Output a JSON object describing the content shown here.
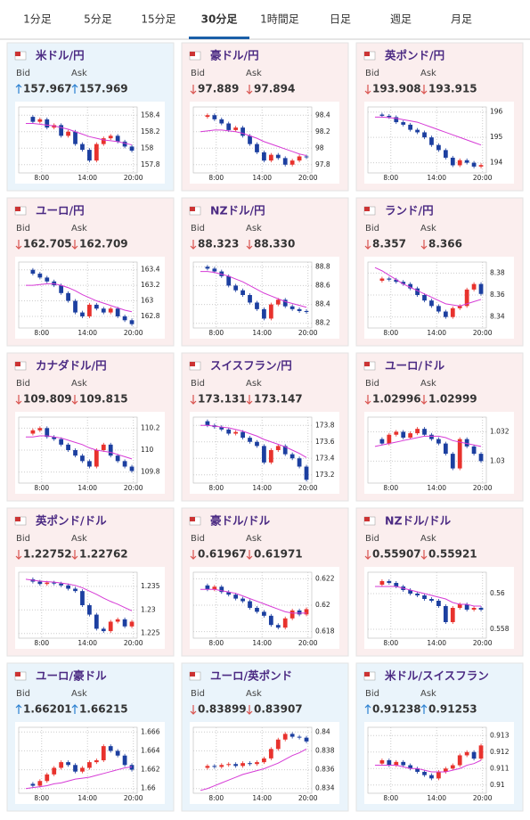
{
  "tabs": {
    "items": [
      "1分足",
      "5分足",
      "15分足",
      "30分足",
      "1時間足",
      "日足",
      "週足",
      "月足"
    ],
    "active": 3
  },
  "labels": {
    "bid": "Bid",
    "ask": "Ask"
  },
  "cards": [
    {
      "pair": "米ドル/円",
      "bid": "157.967",
      "ask": "157.969",
      "direction": "up",
      "highlight": true,
      "chart_data": {
        "type": "candlestick",
        "xlim": [
          5,
          20.5
        ],
        "xticks": [
          {
            "value": 8,
            "label": "8:00"
          },
          {
            "value": 14,
            "label": "14:00"
          },
          {
            "value": 20,
            "label": "20:00"
          }
        ],
        "ylim": [
          157.7,
          158.5
        ],
        "yticks": [
          157.8,
          158,
          158.2,
          158.4
        ],
        "closes": [
          158.38,
          158.32,
          158.35,
          158.25,
          158.28,
          158.15,
          158.2,
          158.05,
          157.98,
          157.85,
          158.05,
          158.12,
          158.15,
          158.08,
          158.02,
          157.97
        ],
        "ma": [
          158.3,
          158.3,
          158.29,
          158.28,
          158.27,
          158.25,
          158.23,
          158.2,
          158.17,
          158.14,
          158.12,
          158.1,
          158.09,
          158.08,
          158.06,
          158.04
        ]
      }
    },
    {
      "pair": "豪ドル/円",
      "bid": "97.889",
      "ask": "97.894",
      "direction": "down",
      "highlight": false,
      "chart_data": {
        "type": "candlestick",
        "xlim": [
          5,
          20.5
        ],
        "xticks": [
          {
            "value": 8,
            "label": "8:00"
          },
          {
            "value": 14,
            "label": "14:00"
          },
          {
            "value": 20,
            "label": "20:00"
          }
        ],
        "ylim": [
          97.7,
          98.5
        ],
        "yticks": [
          97.8,
          98,
          98.2,
          98.4
        ],
        "closes": [
          98.38,
          98.4,
          98.35,
          98.3,
          98.22,
          98.25,
          98.15,
          98.05,
          97.95,
          97.85,
          97.92,
          97.88,
          97.8,
          97.85,
          97.9,
          97.89
        ],
        "ma": [
          98.2,
          98.21,
          98.22,
          98.22,
          98.21,
          98.2,
          98.18,
          98.15,
          98.12,
          98.08,
          98.05,
          98.02,
          97.99,
          97.96,
          97.93,
          97.91
        ]
      }
    },
    {
      "pair": "英ポンド/円",
      "bid": "193.908",
      "ask": "193.915",
      "direction": "down",
      "highlight": false,
      "chart_data": {
        "type": "candlestick",
        "xlim": [
          5,
          20.5
        ],
        "xticks": [
          {
            "value": 8,
            "label": "8:00"
          },
          {
            "value": 14,
            "label": "14:00"
          },
          {
            "value": 20,
            "label": "20:00"
          }
        ],
        "ylim": [
          193.6,
          196.2
        ],
        "yticks": [
          194,
          195,
          196
        ],
        "closes": [
          195.9,
          195.85,
          195.8,
          195.6,
          195.5,
          195.3,
          195.2,
          195.0,
          194.7,
          194.5,
          194.2,
          193.9,
          194.1,
          194.0,
          193.85,
          193.91
        ],
        "ma": [
          195.8,
          195.8,
          195.78,
          195.75,
          195.7,
          195.65,
          195.6,
          195.5,
          195.4,
          195.3,
          195.2,
          195.1,
          195.0,
          194.9,
          194.8,
          194.7
        ]
      }
    },
    {
      "pair": "ユーロ/円",
      "bid": "162.705",
      "ask": "162.709",
      "direction": "down",
      "highlight": false,
      "chart_data": {
        "type": "candlestick",
        "xlim": [
          5,
          20.5
        ],
        "xticks": [
          {
            "value": 8,
            "label": "8:00"
          },
          {
            "value": 14,
            "label": "14:00"
          },
          {
            "value": 20,
            "label": "20:00"
          }
        ],
        "ylim": [
          162.65,
          163.5
        ],
        "yticks": [
          162.8,
          163,
          163.2,
          163.4
        ],
        "closes": [
          163.4,
          163.35,
          163.3,
          163.25,
          163.2,
          163.1,
          163.0,
          162.85,
          162.8,
          162.95,
          162.9,
          162.85,
          162.9,
          162.8,
          162.75,
          162.7
        ],
        "ma": [
          163.2,
          163.2,
          163.21,
          163.22,
          163.22,
          163.2,
          163.17,
          163.13,
          163.08,
          163.04,
          163.0,
          162.97,
          162.94,
          162.91,
          162.88,
          162.86
        ]
      }
    },
    {
      "pair": "NZドル/円",
      "bid": "88.323",
      "ask": "88.330",
      "direction": "down",
      "highlight": false,
      "chart_data": {
        "type": "candlestick",
        "xlim": [
          5,
          20.5
        ],
        "xticks": [
          {
            "value": 8,
            "label": "8:00"
          },
          {
            "value": 14,
            "label": "14:00"
          },
          {
            "value": 20,
            "label": "20:00"
          }
        ],
        "ylim": [
          88.15,
          88.85
        ],
        "yticks": [
          88.2,
          88.4,
          88.6,
          88.8
        ],
        "closes": [
          88.8,
          88.78,
          88.75,
          88.7,
          88.6,
          88.55,
          88.5,
          88.42,
          88.35,
          88.25,
          88.4,
          88.45,
          88.38,
          88.35,
          88.33,
          88.32
        ],
        "ma": [
          88.75,
          88.75,
          88.74,
          88.72,
          88.7,
          88.67,
          88.64,
          88.6,
          88.56,
          88.52,
          88.49,
          88.46,
          88.43,
          88.41,
          88.39,
          88.37
        ]
      }
    },
    {
      "pair": "ランド/円",
      "bid": "8.357",
      "ask": "8.366",
      "direction": "down",
      "highlight": false,
      "chart_data": {
        "type": "candlestick",
        "xlim": [
          5,
          20.5
        ],
        "xticks": [
          {
            "value": 8,
            "label": "8:00"
          },
          {
            "value": 14,
            "label": "14:00"
          },
          {
            "value": 20,
            "label": "20:00"
          }
        ],
        "ylim": [
          8.33,
          8.39
        ],
        "yticks": [
          8.34,
          8.36,
          8.38
        ],
        "closes": [
          8.373,
          8.375,
          8.374,
          8.372,
          8.37,
          8.366,
          8.36,
          8.355,
          8.35,
          8.345,
          8.34,
          8.348,
          8.35,
          8.365,
          8.37,
          8.361
        ],
        "ma": [
          8.385,
          8.382,
          8.378,
          8.374,
          8.37,
          8.367,
          8.364,
          8.361,
          8.358,
          8.355,
          8.352,
          8.351,
          8.35,
          8.352,
          8.354,
          8.356
        ]
      }
    },
    {
      "pair": "カナダドル/円",
      "bid": "109.809",
      "ask": "109.815",
      "direction": "down",
      "highlight": false,
      "chart_data": {
        "type": "candlestick",
        "xlim": [
          5,
          20.5
        ],
        "xticks": [
          {
            "value": 8,
            "label": "8:00"
          },
          {
            "value": 14,
            "label": "14:00"
          },
          {
            "value": 20,
            "label": "20:00"
          }
        ],
        "ylim": [
          109.7,
          110.3
        ],
        "yticks": [
          109.8,
          110,
          110.2
        ],
        "closes": [
          110.15,
          110.18,
          110.2,
          110.12,
          110.1,
          110.05,
          110.0,
          109.95,
          109.9,
          109.85,
          110.0,
          110.05,
          109.95,
          109.9,
          109.85,
          109.81
        ],
        "ma": [
          110.12,
          110.12,
          110.13,
          110.13,
          110.12,
          110.11,
          110.09,
          110.07,
          110.05,
          110.02,
          110.0,
          109.99,
          109.98,
          109.96,
          109.94,
          109.92
        ]
      }
    },
    {
      "pair": "スイスフラン/円",
      "bid": "173.131",
      "ask": "173.147",
      "direction": "down",
      "highlight": false,
      "chart_data": {
        "type": "candlestick",
        "xlim": [
          5,
          20.5
        ],
        "xticks": [
          {
            "value": 8,
            "label": "8:00"
          },
          {
            "value": 14,
            "label": "14:00"
          },
          {
            "value": 20,
            "label": "20:00"
          }
        ],
        "ylim": [
          173.1,
          173.9
        ],
        "yticks": [
          173.2,
          173.4,
          173.6,
          173.8
        ],
        "closes": [
          173.85,
          173.8,
          173.78,
          173.75,
          173.7,
          173.72,
          173.65,
          173.6,
          173.55,
          173.35,
          173.5,
          173.55,
          173.45,
          173.4,
          173.3,
          173.14
        ],
        "ma": [
          173.8,
          173.8,
          173.79,
          173.78,
          173.77,
          173.75,
          173.73,
          173.7,
          173.67,
          173.63,
          173.6,
          173.57,
          173.54,
          173.5,
          173.46,
          173.41
        ]
      }
    },
    {
      "pair": "ユーロ/ドル",
      "bid": "1.02996",
      "ask": "1.02999",
      "direction": "down",
      "highlight": false,
      "chart_data": {
        "type": "candlestick",
        "xlim": [
          5,
          20.5
        ],
        "xticks": [
          {
            "value": 8,
            "label": "8:00"
          },
          {
            "value": 14,
            "label": "14:00"
          },
          {
            "value": 20,
            "label": "20:00"
          }
        ],
        "ylim": [
          1.0285,
          1.033
        ],
        "yticks": [
          1.03,
          1.032
        ],
        "closes": [
          1.0315,
          1.0312,
          1.0318,
          1.032,
          1.0316,
          1.0319,
          1.0322,
          1.0318,
          1.0315,
          1.0312,
          1.0305,
          1.0295,
          1.0315,
          1.031,
          1.0305,
          1.03
        ],
        "ma": [
          1.031,
          1.0311,
          1.0312,
          1.0313,
          1.0314,
          1.0315,
          1.0316,
          1.0317,
          1.0317,
          1.0317,
          1.0316,
          1.0314,
          1.0313,
          1.0312,
          1.0311,
          1.031
        ]
      }
    },
    {
      "pair": "英ポンド/ドル",
      "bid": "1.22752",
      "ask": "1.22762",
      "direction": "down",
      "highlight": false,
      "chart_data": {
        "type": "candlestick",
        "xlim": [
          5,
          20.5
        ],
        "xticks": [
          {
            "value": 8,
            "label": "8:00"
          },
          {
            "value": 14,
            "label": "14:00"
          },
          {
            "value": 20,
            "label": "20:00"
          }
        ],
        "ylim": [
          1.224,
          1.238
        ],
        "yticks": [
          1.225,
          1.23,
          1.235
        ],
        "closes": [
          1.2365,
          1.236,
          1.2355,
          1.2358,
          1.2356,
          1.2352,
          1.2345,
          1.234,
          1.231,
          1.229,
          1.226,
          1.2255,
          1.2275,
          1.228,
          1.2265,
          1.2275
        ],
        "ma": [
          1.2365,
          1.2363,
          1.2361,
          1.236,
          1.2359,
          1.2357,
          1.2355,
          1.2352,
          1.2347,
          1.234,
          1.2333,
          1.2325,
          1.2318,
          1.2312,
          1.2305,
          1.2298
        ]
      }
    },
    {
      "pair": "豪ドル/ドル",
      "bid": "0.61967",
      "ask": "0.61971",
      "direction": "down",
      "highlight": false,
      "chart_data": {
        "type": "candlestick",
        "xlim": [
          5,
          20.5
        ],
        "xticks": [
          {
            "value": 8,
            "label": "8:00"
          },
          {
            "value": 14,
            "label": "14:00"
          },
          {
            "value": 20,
            "label": "20:00"
          }
        ],
        "ylim": [
          0.6175,
          0.6225
        ],
        "yticks": [
          0.618,
          0.62,
          0.622
        ],
        "closes": [
          0.6215,
          0.6212,
          0.6214,
          0.621,
          0.6208,
          0.6205,
          0.6203,
          0.6198,
          0.6195,
          0.6192,
          0.6185,
          0.6183,
          0.619,
          0.6196,
          0.6193,
          0.6197
        ],
        "ma": [
          0.6212,
          0.6212,
          0.6212,
          0.6211,
          0.621,
          0.6209,
          0.6207,
          0.6205,
          0.6203,
          0.6201,
          0.6199,
          0.6197,
          0.6195,
          0.6194,
          0.6194,
          0.6194
        ]
      }
    },
    {
      "pair": "NZドル/ドル",
      "bid": "0.55907",
      "ask": "0.55921",
      "direction": "down",
      "highlight": false,
      "chart_data": {
        "type": "candlestick",
        "xlim": [
          5,
          20.5
        ],
        "xticks": [
          {
            "value": 8,
            "label": "8:00"
          },
          {
            "value": 14,
            "label": "14:00"
          },
          {
            "value": 20,
            "label": "20:00"
          }
        ],
        "ylim": [
          0.5575,
          0.5612
        ],
        "yticks": [
          0.558,
          0.56
        ],
        "closes": [
          0.5605,
          0.5607,
          0.5606,
          0.5604,
          0.5602,
          0.56,
          0.5599,
          0.5597,
          0.5596,
          0.5593,
          0.5584,
          0.5592,
          0.5594,
          0.5591,
          0.5592,
          0.5591
        ],
        "ma": [
          0.5604,
          0.5604,
          0.5604,
          0.5604,
          0.5603,
          0.5602,
          0.5601,
          0.56,
          0.5599,
          0.5598,
          0.5597,
          0.5595,
          0.5594,
          0.5594,
          0.5593,
          0.5593
        ]
      }
    },
    {
      "pair": "ユーロ/豪ドル",
      "bid": "1.66201",
      "ask": "1.66215",
      "direction": "up",
      "highlight": true,
      "chart_data": {
        "type": "candlestick",
        "xlim": [
          5,
          20.5
        ],
        "xticks": [
          {
            "value": 8,
            "label": "8:00"
          },
          {
            "value": 14,
            "label": "14:00"
          },
          {
            "value": 20,
            "label": "20:00"
          }
        ],
        "ylim": [
          1.6595,
          1.6665
        ],
        "yticks": [
          1.66,
          1.662,
          1.664,
          1.666
        ],
        "closes": [
          1.6605,
          1.6603,
          1.6608,
          1.6615,
          1.6622,
          1.6628,
          1.6625,
          1.6618,
          1.6622,
          1.6628,
          1.663,
          1.6645,
          1.664,
          1.6635,
          1.6625,
          1.662
        ],
        "ma": [
          1.66,
          1.6601,
          1.6602,
          1.6603,
          1.6605,
          1.6606,
          1.6608,
          1.661,
          1.6611,
          1.6612,
          1.6614,
          1.6616,
          1.6618,
          1.662,
          1.6622,
          1.6623
        ]
      }
    },
    {
      "pair": "ユーロ/英ポンド",
      "bid": "0.83899",
      "ask": "0.83907",
      "direction": "down",
      "highlight": true,
      "chart_data": {
        "type": "candlestick",
        "xlim": [
          5,
          20.5
        ],
        "xticks": [
          {
            "value": 8,
            "label": "8:00"
          },
          {
            "value": 14,
            "label": "14:00"
          },
          {
            "value": 20,
            "label": "20:00"
          }
        ],
        "ylim": [
          0.8335,
          0.8405
        ],
        "yticks": [
          0.834,
          0.836,
          0.838,
          0.84
        ],
        "closes": [
          0.8362,
          0.8364,
          0.8363,
          0.8365,
          0.8366,
          0.8364,
          0.8367,
          0.8366,
          0.8368,
          0.8372,
          0.8382,
          0.8392,
          0.8398,
          0.8395,
          0.8394,
          0.839
        ],
        "ma": [
          0.8338,
          0.834,
          0.8343,
          0.8346,
          0.8349,
          0.8352,
          0.8355,
          0.8357,
          0.8359,
          0.8361,
          0.8364,
          0.8367,
          0.8371,
          0.8375,
          0.8378,
          0.8382
        ]
      }
    },
    {
      "pair": "米ドル/スイスフラン",
      "bid": "0.91238",
      "ask": "0.91253",
      "direction": "up",
      "highlight": true,
      "chart_data": {
        "type": "candlestick",
        "xlim": [
          5,
          20.5
        ],
        "xticks": [
          {
            "value": 8,
            "label": "8:00"
          },
          {
            "value": 14,
            "label": "14:00"
          },
          {
            "value": 20,
            "label": "20:00"
          }
        ],
        "ylim": [
          0.9095,
          0.9135
        ],
        "yticks": [
          0.91,
          0.911,
          0.912,
          0.913
        ],
        "closes": [
          0.9113,
          0.9115,
          0.9112,
          0.9114,
          0.9112,
          0.911,
          0.9108,
          0.9106,
          0.9104,
          0.9108,
          0.911,
          0.9112,
          0.9118,
          0.912,
          0.9116,
          0.9124
        ],
        "ma": [
          0.9112,
          0.9112,
          0.9112,
          0.9112,
          0.9111,
          0.911,
          0.911,
          0.9109,
          0.9108,
          0.9108,
          0.9108,
          0.9109,
          0.911,
          0.9112,
          0.9113,
          0.9115
        ]
      }
    }
  ]
}
